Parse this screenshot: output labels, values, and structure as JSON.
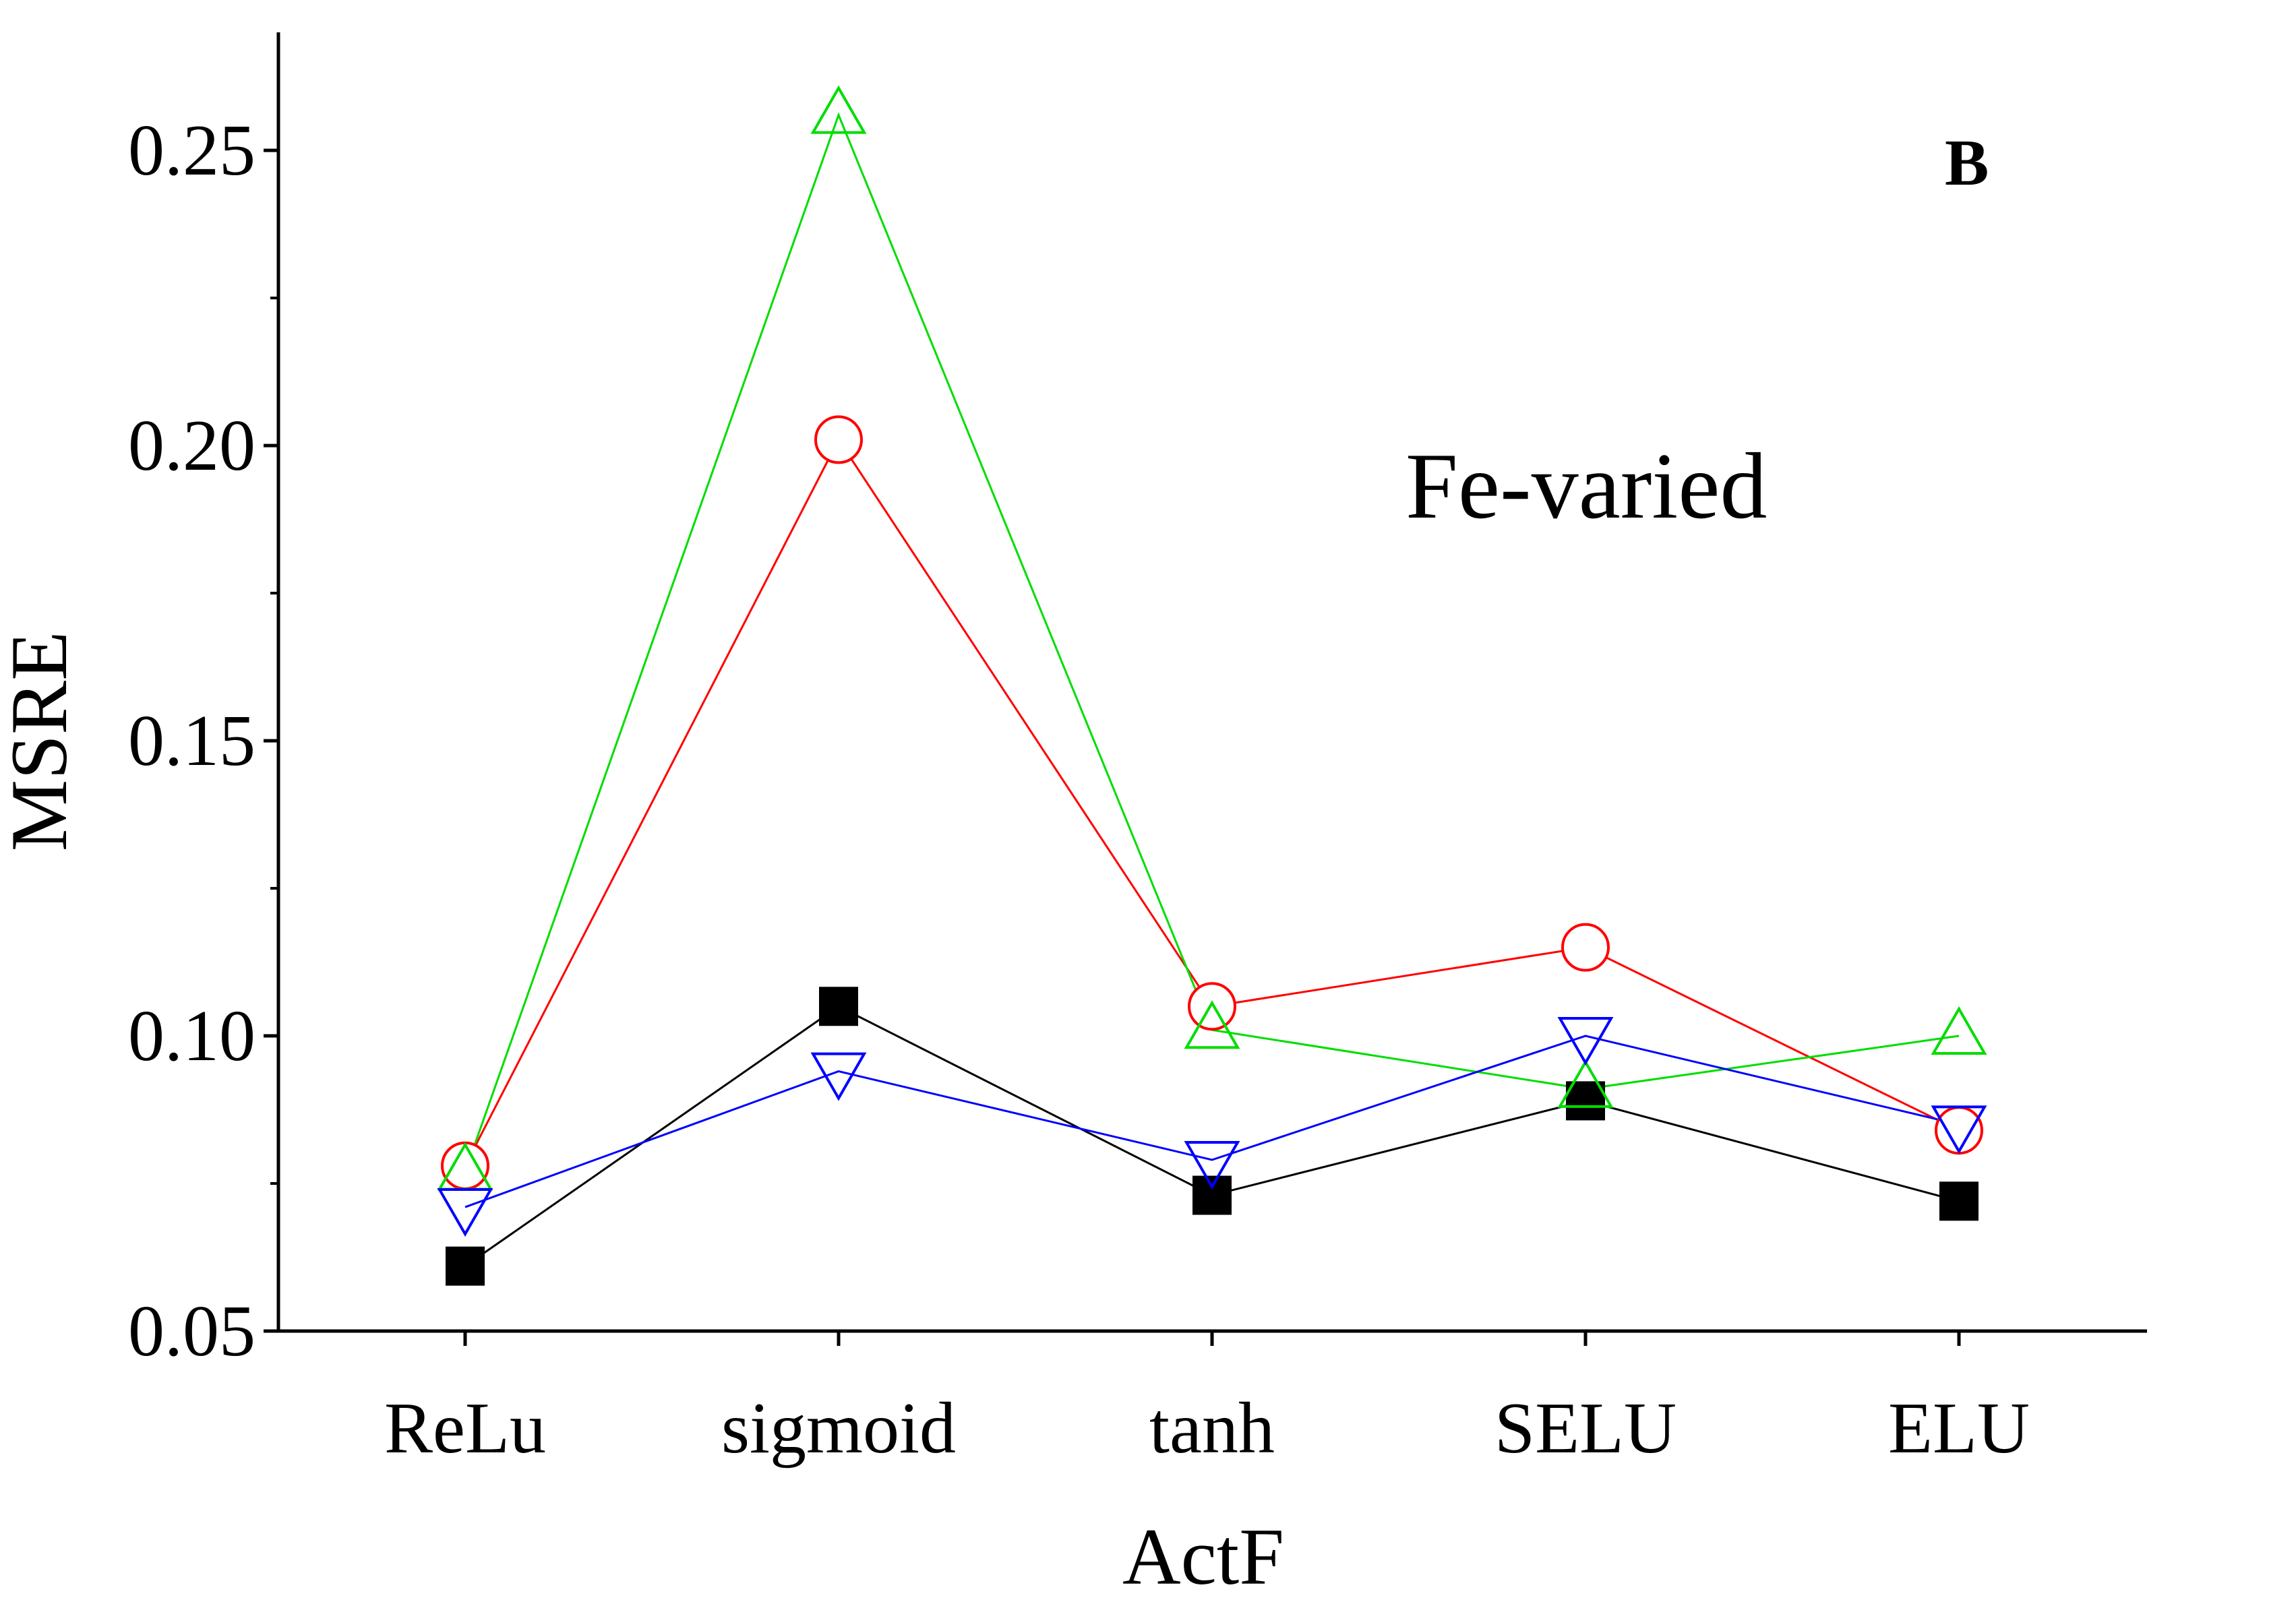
{
  "chart_data": {
    "type": "line",
    "panel_label": "B",
    "annotation": "Fe-varied",
    "xlabel": "ActF",
    "ylabel": "MSRE",
    "categories": [
      "ReLu",
      "sigmoid",
      "tanh",
      "SELU",
      "ELU"
    ],
    "ylim": [
      0.05,
      0.27
    ],
    "yticks": [
      0.05,
      0.1,
      0.15,
      0.2,
      0.25
    ],
    "ytick_labels": [
      "0.05",
      "0.10",
      "0.15",
      "0.20",
      "0.25"
    ],
    "grid": false,
    "series": [
      {
        "marker": "square-filled",
        "color": "#000000",
        "values": [
          0.061,
          0.105,
          0.073,
          0.089,
          0.072
        ]
      },
      {
        "marker": "circle-open",
        "color": "#ff0000",
        "values": [
          0.078,
          0.201,
          0.105,
          0.115,
          0.084
        ]
      },
      {
        "marker": "triangle-up-open",
        "color": "#00dd00",
        "values": [
          0.077,
          0.256,
          0.101,
          0.091,
          0.1
        ]
      },
      {
        "marker": "triangle-down-open",
        "color": "#0000ff",
        "values": [
          0.071,
          0.094,
          0.079,
          0.1,
          0.085
        ]
      }
    ]
  }
}
